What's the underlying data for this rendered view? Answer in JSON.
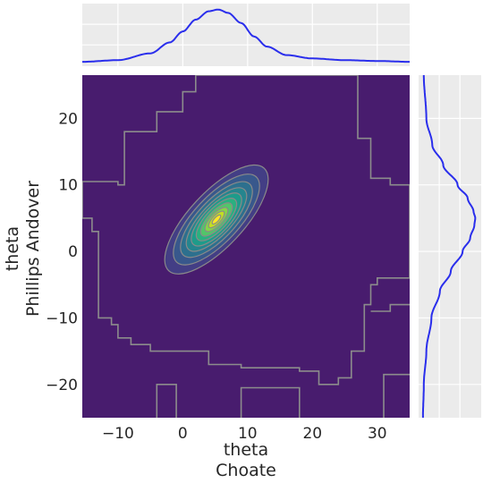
{
  "chart_data": [
    {
      "type": "heatmap",
      "description_kind": "joint kde contour (filled)",
      "xlabel": "theta\nChoate",
      "ylabel": "theta\nPhillips Andover",
      "xlim": [
        -15.5,
        35
      ],
      "ylim": [
        -25,
        26.5
      ],
      "x_ticks": [
        -10,
        0,
        10,
        20,
        30
      ],
      "y_ticks": [
        -20,
        -10,
        0,
        10,
        20
      ],
      "x_tick_labels": [
        "−10",
        "0",
        "10",
        "20",
        "30"
      ],
      "y_tick_labels": [
        "−20",
        "−10",
        "0",
        "10",
        "20"
      ],
      "center": [
        5.2,
        4.8
      ],
      "correlation": 0.7,
      "grid": true,
      "colormap": "viridis",
      "levels": [
        {
          "color": "#433e85",
          "sx": 7.2,
          "sy": 6.6
        },
        {
          "color": "#38588c",
          "sx": 6.0,
          "sy": 5.5
        },
        {
          "color": "#2d708e",
          "sx": 5.0,
          "sy": 4.6
        },
        {
          "color": "#25858e",
          "sx": 4.2,
          "sy": 3.8
        },
        {
          "color": "#1e9b8a",
          "sx": 3.5,
          "sy": 3.2
        },
        {
          "color": "#2ab07f",
          "sx": 2.8,
          "sy": 2.6
        },
        {
          "color": "#52c569",
          "sx": 2.2,
          "sy": 2.0
        },
        {
          "color": "#86d549",
          "sx": 1.6,
          "sy": 1.45
        },
        {
          "color": "#c2df23",
          "sx": 1.1,
          "sy": 1.0
        },
        {
          "color": "#fde725",
          "sx": 0.6,
          "sy": 0.55
        }
      ]
    },
    {
      "type": "line",
      "description_kind": "marginal kde of theta Choate",
      "x": [
        -15.5,
        -10,
        -5,
        -2,
        0,
        2,
        4,
        5.5,
        7,
        9,
        11,
        13,
        16,
        20,
        25,
        30,
        35
      ],
      "y": [
        0.002,
        0.004,
        0.012,
        0.025,
        0.038,
        0.052,
        0.062,
        0.064,
        0.06,
        0.048,
        0.032,
        0.02,
        0.01,
        0.006,
        0.004,
        0.003,
        0.002
      ],
      "ylim": [
        0,
        0.07
      ],
      "grid": true
    },
    {
      "type": "line",
      "description_kind": "marginal kde of theta Phillips Andover",
      "y": [
        -25,
        -20,
        -15,
        -10,
        -6,
        -3,
        0,
        2,
        4,
        5,
        6,
        8,
        10,
        13,
        16,
        20,
        26.5
      ],
      "x": [
        0.002,
        0.003,
        0.006,
        0.012,
        0.022,
        0.035,
        0.049,
        0.058,
        0.063,
        0.064,
        0.062,
        0.055,
        0.043,
        0.026,
        0.013,
        0.006,
        0.003
      ],
      "xlim": [
        0,
        0.07
      ],
      "grid": true
    }
  ],
  "colors": {
    "background": "#481c6e",
    "panel": "#ebebeb",
    "grid": "#ffffff",
    "outer_contour": "#8c8c8c",
    "marginal_line": "#2a2eec"
  }
}
